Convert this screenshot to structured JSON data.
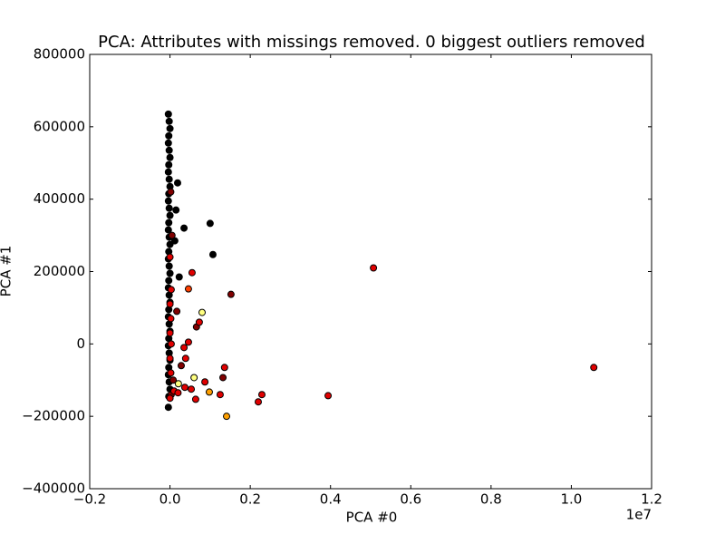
{
  "chart_data": {
    "type": "scatter",
    "title": "PCA: Attributes with missings removed. 0 biggest outliers removed",
    "x_label": "PCA #0",
    "y_label": "PCA #1",
    "x_offset_label": "1e7",
    "xlim": [
      -0.2,
      1.2
    ],
    "ylim": [
      -400000,
      800000
    ],
    "xticks": [
      {
        "value": -0.2,
        "label": "−0.2"
      },
      {
        "value": 0,
        "label": "0.0"
      },
      0.2,
      0.4,
      0.6,
      0.8,
      {
        "value": 1,
        "label": "1.0"
      },
      1.2
    ],
    "yticks": [
      {
        "value": -400000,
        "label": "−400000"
      },
      {
        "value": -200000,
        "label": "−200000"
      },
      0,
      200000,
      400000,
      600000,
      800000
    ],
    "grid": false,
    "series": [
      {
        "color": "#000000",
        "x": [
          -0.004,
          -0.002,
          0.0,
          -0.003,
          -0.004,
          -0.002,
          0.0,
          -0.003,
          -0.004,
          -0.002,
          0.0,
          -0.003,
          -0.004,
          -0.002,
          0.0,
          -0.003,
          -0.004,
          -0.002,
          0.0,
          -0.003,
          -0.004,
          -0.002,
          0.0,
          -0.003,
          -0.004,
          -0.002,
          0.0,
          -0.003,
          -0.004,
          -0.002,
          0.0,
          -0.003,
          -0.004,
          -0.002,
          0.0,
          -0.003,
          -0.004,
          -0.002,
          0.0,
          -0.003,
          -0.004,
          0.107,
          0.1,
          0.035,
          0.019,
          0.015,
          0.012,
          0.023
        ],
        "y": [
          635000,
          615000,
          595000,
          575000,
          555000,
          535000,
          515000,
          495000,
          475000,
          455000,
          435000,
          415000,
          395000,
          375000,
          355000,
          335000,
          315000,
          295000,
          275000,
          255000,
          235000,
          215000,
          195000,
          175000,
          155000,
          135000,
          115000,
          95000,
          75000,
          55000,
          35000,
          15000,
          -5000,
          -25000,
          -45000,
          -65000,
          -85000,
          -105000,
          -125000,
          -145000,
          -175000,
          247000,
          333000,
          320000,
          445000,
          370000,
          285000,
          185000
        ]
      },
      {
        "color": "#800000",
        "x": [
          0.132,
          0.152,
          0.066,
          0.028,
          0.017,
          0.002,
          0.005,
          0.003,
          0.008
        ],
        "y": [
          -93000,
          137000,
          47000,
          -60000,
          90000,
          420000,
          300000,
          -140000,
          -100000
        ]
      },
      {
        "color": "#e00000",
        "x": [
          0.507,
          1.056,
          0.394,
          0.229,
          0.22,
          0.136,
          0.055,
          0.073,
          0.046,
          0.125,
          0.064,
          0.087,
          0.053,
          0.037,
          0.035,
          0.039,
          0.0,
          0.002,
          0.0,
          0.003,
          0.0,
          0.002,
          0.0,
          0.003,
          0.0,
          0.01,
          0.02
        ],
        "y": [
          210000,
          -65000,
          -143000,
          -140000,
          -160000,
          -65000,
          197000,
          60000,
          5000,
          -140000,
          -153000,
          -105000,
          -125000,
          -120000,
          -10000,
          -40000,
          -150000,
          -80000,
          -40000,
          0,
          30000,
          70000,
          110000,
          150000,
          240000,
          -130000,
          -135000
        ]
      },
      {
        "color": "#ff4000",
        "x": [
          0.046
        ],
        "y": [
          152000
        ]
      },
      {
        "color": "#ffa000",
        "x": [
          0.141,
          0.098
        ],
        "y": [
          -200000,
          -133000
        ]
      },
      {
        "color": "#ffff80",
        "x": [
          0.08,
          0.06,
          0.021
        ],
        "y": [
          87000,
          -93000,
          -110000
        ]
      }
    ]
  }
}
